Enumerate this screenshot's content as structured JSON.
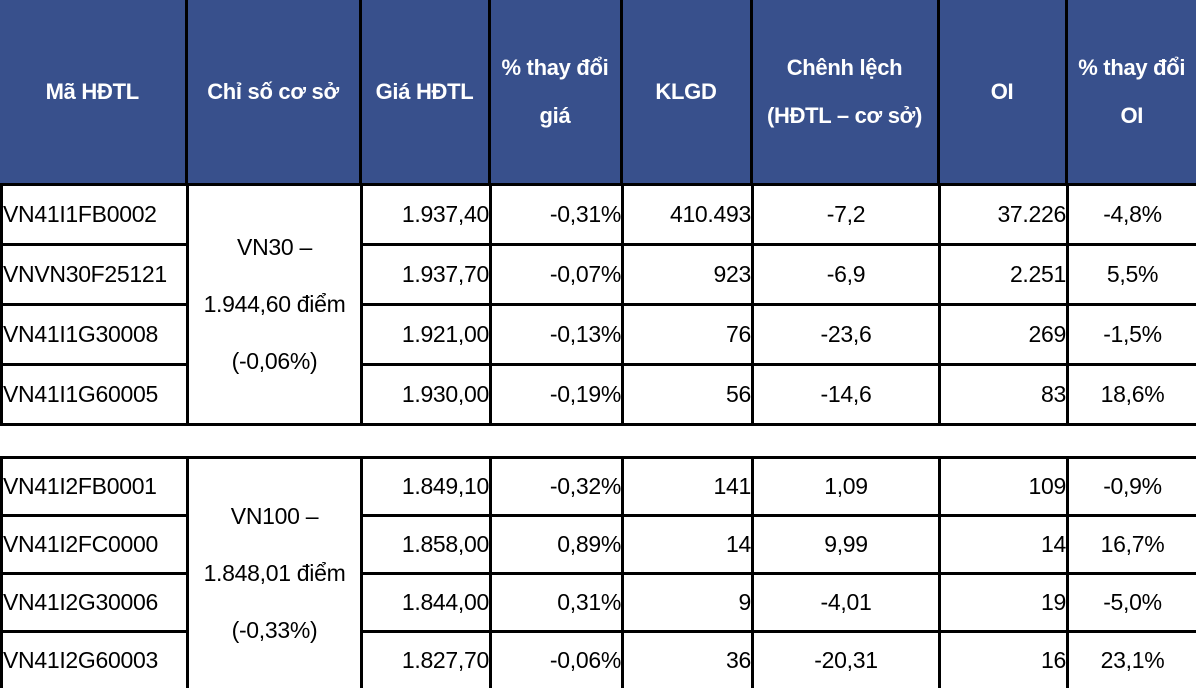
{
  "table": {
    "colors": {
      "header_bg": "#38508C",
      "header_text": "#FFFFFF",
      "border": "#000000",
      "row_bg": "#FFFFFF",
      "row_text": "#000000"
    },
    "columns": [
      {
        "label": "Mã HĐTL"
      },
      {
        "label": "Chỉ số cơ sở"
      },
      {
        "label": "Giá HĐTL"
      },
      {
        "label": "% thay đổi\ngiá"
      },
      {
        "label": "KLGD"
      },
      {
        "label": "Chênh lệch\n(HĐTL – cơ sở)"
      },
      {
        "label": "OI"
      },
      {
        "label": "% thay đổi\nOI"
      }
    ],
    "groups": [
      {
        "index_label": "VN30 –\n1.944,60 điểm\n(-0,06%)",
        "rows": [
          {
            "code": "VN41I1FB0002",
            "price": "1.937,40",
            "price_change": "-0,31%",
            "volume": "410.493",
            "spread": "-7,2",
            "oi": "37.226",
            "oi_change": "-4,8%"
          },
          {
            "code": "VNVN30F25121",
            "price": "1.937,70",
            "price_change": "-0,07%",
            "volume": "923",
            "spread": "-6,9",
            "oi": "2.251",
            "oi_change": "5,5%"
          },
          {
            "code": "VN41I1G30008",
            "price": "1.921,00",
            "price_change": "-0,13%",
            "volume": "76",
            "spread": "-23,6",
            "oi": "269",
            "oi_change": "-1,5%"
          },
          {
            "code": "VN41I1G60005",
            "price": "1.930,00",
            "price_change": "-0,19%",
            "volume": "56",
            "spread": "-14,6",
            "oi": "83",
            "oi_change": "18,6%"
          }
        ]
      },
      {
        "index_label": "VN100 –\n1.848,01 điểm\n(-0,33%)",
        "rows": [
          {
            "code": "VN41I2FB0001",
            "price": "1.849,10",
            "price_change": "-0,32%",
            "volume": "141",
            "spread": "1,09",
            "oi": "109",
            "oi_change": "-0,9%"
          },
          {
            "code": "VN41I2FC0000",
            "price": "1.858,00",
            "price_change": "0,89%",
            "volume": "14",
            "spread": "9,99",
            "oi": "14",
            "oi_change": "16,7%"
          },
          {
            "code": "VN41I2G30006",
            "price": "1.844,00",
            "price_change": "0,31%",
            "volume": "9",
            "spread": "-4,01",
            "oi": "19",
            "oi_change": "-5,0%"
          },
          {
            "code": "VN41I2G60003",
            "price": "1.827,70",
            "price_change": "-0,06%",
            "volume": "36",
            "spread": "-20,31",
            "oi": "16",
            "oi_change": "23,1%"
          }
        ]
      }
    ]
  }
}
